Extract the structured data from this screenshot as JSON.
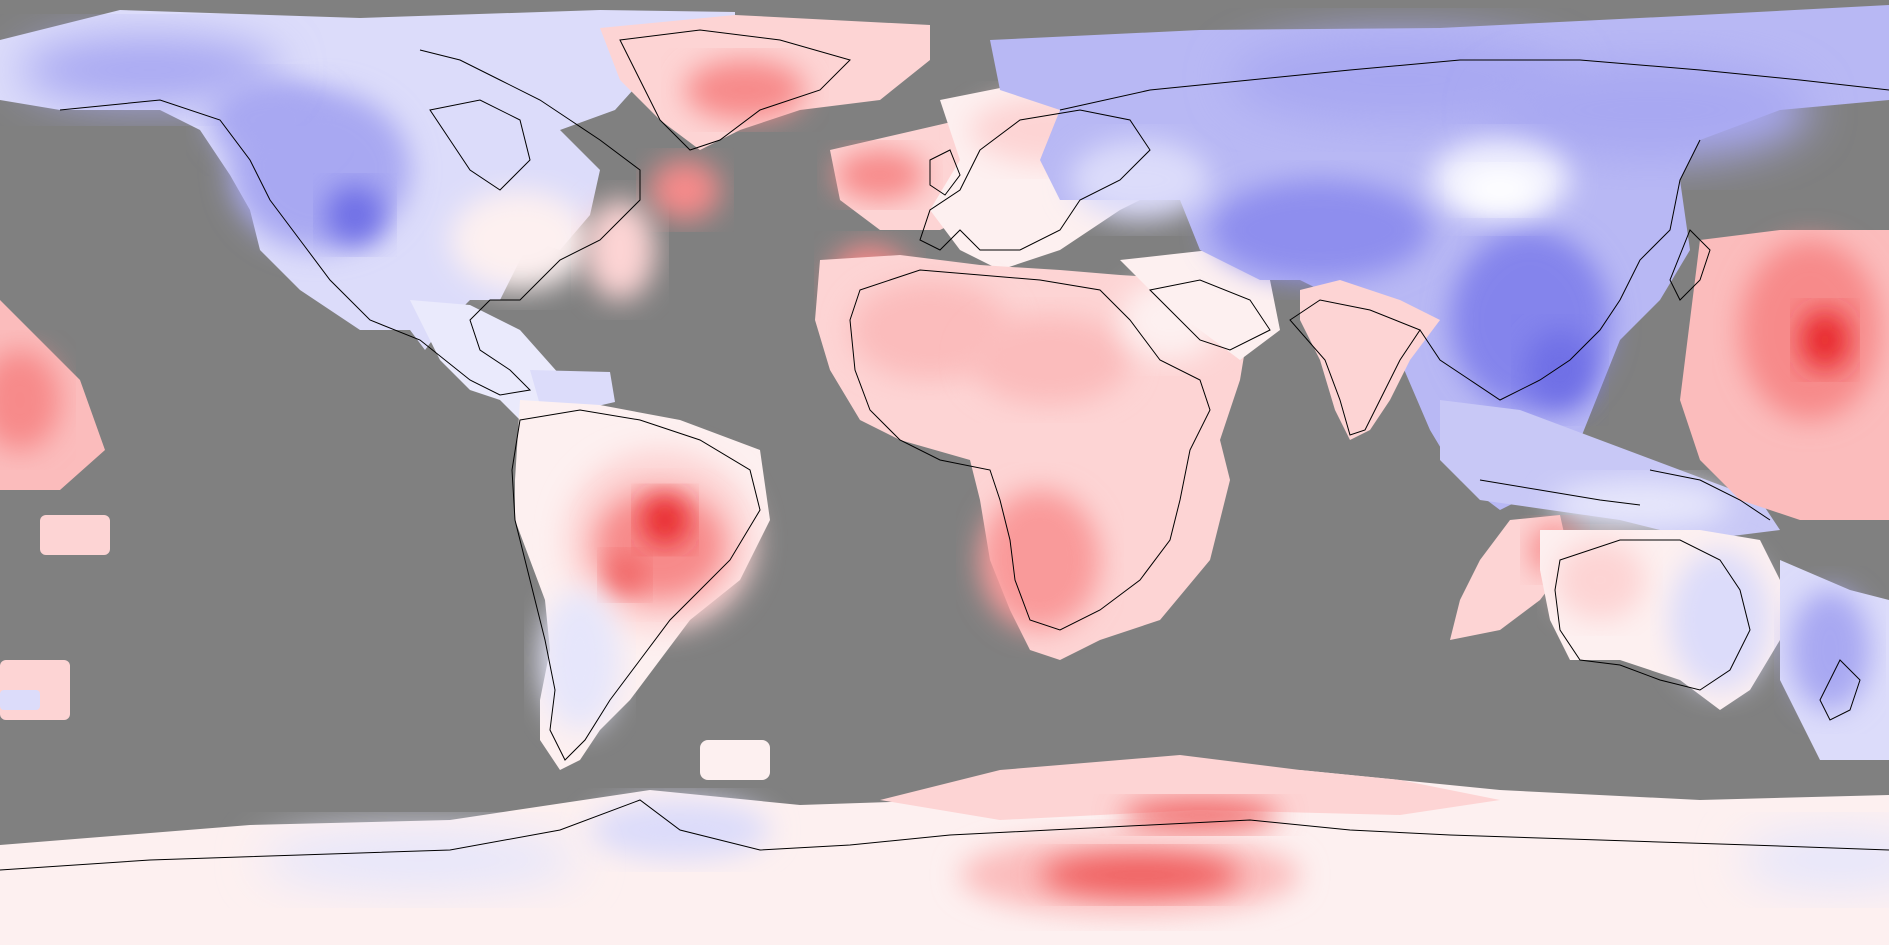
{
  "map": {
    "projection": "equirectangular",
    "extent": {
      "lon": [
        -180,
        180
      ],
      "lat": [
        -90,
        90
      ]
    },
    "background_color": "#808080",
    "coastline_color": "#000000",
    "colors": {
      "warm_strong": "#e8262b",
      "warm": "#f78a8a",
      "warm_light": "#fdd4d4",
      "neutral": "#fdf0f0",
      "cool_light": "#dcdcfa",
      "cool": "#a8a8f2",
      "cool_strong": "#6f6fe6"
    },
    "legend_visible": false,
    "title_visible": false
  }
}
